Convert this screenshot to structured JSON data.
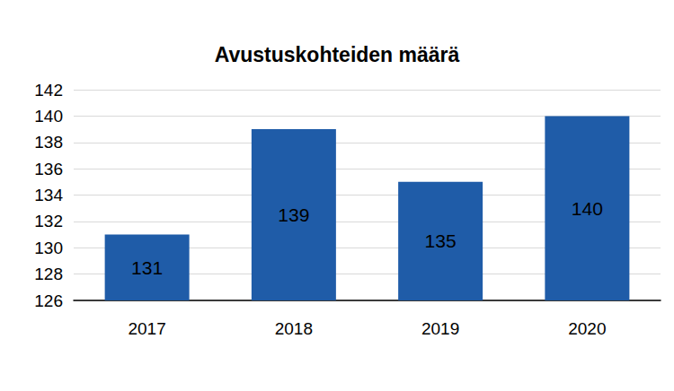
{
  "chart_data": {
    "type": "bar",
    "title": "Avustuskohteiden määrä",
    "categories": [
      "2017",
      "2018",
      "2019",
      "2020"
    ],
    "values": [
      131,
      139,
      135,
      140
    ],
    "color": "#1f5ca8",
    "ylim": [
      126,
      142
    ],
    "yticks": [
      126,
      128,
      130,
      132,
      134,
      136,
      138,
      140,
      142
    ],
    "grid": true,
    "data_labels": true
  }
}
